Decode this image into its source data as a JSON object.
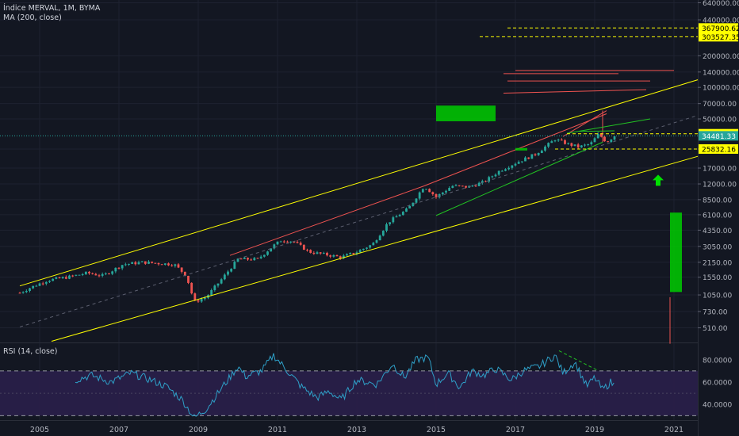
{
  "header": {
    "symbol_line": "Índice MERVAL, 1M, BYMA",
    "ma_line": "MA (200, close)"
  },
  "rsi": {
    "label": "RSI (14, close)",
    "levels": {
      "upper": 70,
      "lower": 30
    },
    "axis_ticks": [
      "80.0000",
      "60.0000",
      "40.0000"
    ]
  },
  "price_axis": {
    "ticks": [
      "640000.00",
      "440000.00",
      "200000.00",
      "140000.00",
      "100000.00",
      "70000.00",
      "50000.00",
      "25832.16",
      "17000.00",
      "12000.00",
      "8500.00",
      "6100.00",
      "4350.00",
      "3050.00",
      "2150.00",
      "1550.00",
      "1050.00",
      "730.00",
      "510.00"
    ],
    "tick_values": [
      640000,
      440000,
      200000,
      140000,
      100000,
      70000,
      50000,
      25832.16,
      17000,
      12000,
      8500,
      6100,
      4350,
      3050,
      2150,
      1550,
      1050,
      730,
      510
    ],
    "labels": [
      {
        "text": "367900.62",
        "value": 367900.62,
        "color": "#ffff00",
        "text_color": "#000000"
      },
      {
        "text": "303527.35",
        "value": 303527.35,
        "color": "#ffff00",
        "text_color": "#000000"
      },
      {
        "text": "36118.27",
        "value": 36118.27,
        "color": "#ffff00",
        "text_color": "#000000"
      },
      {
        "text": "34481.33",
        "value": 34481.33,
        "color": "#26a69a",
        "text_color": "#ffffff"
      },
      {
        "text": "25832.16",
        "value": 25832.16,
        "color": "#ffff00",
        "text_color": "#000000"
      }
    ]
  },
  "time_axis": {
    "ticks": [
      "2005",
      "2007",
      "2009",
      "2011",
      "2013",
      "2015",
      "2017",
      "2019",
      "2021"
    ],
    "tick_years": [
      2005,
      2007,
      2009,
      2011,
      2013,
      2015,
      2017,
      2019,
      2021
    ]
  },
  "colors": {
    "background": "#131722",
    "up": "#26a69a",
    "down": "#ef5350",
    "channel": "#ffff00",
    "green_zone": "#00cc00",
    "rsi_line": "#2ea0c8",
    "rsi_band": "#2a1f4a",
    "last_price_line": "#26a69a"
  },
  "chart_data": {
    "type": "candlestick",
    "scale": "log",
    "x_range": [
      2004.0,
      2021.6
    ],
    "y_range": [
      370,
      680000
    ],
    "price_anchors": [
      [
        2004.5,
        1100
      ],
      [
        2004.8,
        1250
      ],
      [
        2005.2,
        1450
      ],
      [
        2005.7,
        1550
      ],
      [
        2006.2,
        1700
      ],
      [
        2006.6,
        1600
      ],
      [
        2007.1,
        2050
      ],
      [
        2007.6,
        2150
      ],
      [
        2008.0,
        2100
      ],
      [
        2008.4,
        2050
      ],
      [
        2008.7,
        1600
      ],
      [
        2008.9,
        900
      ],
      [
        2009.2,
        1000
      ],
      [
        2009.6,
        1500
      ],
      [
        2010.0,
        2300
      ],
      [
        2010.5,
        2300
      ],
      [
        2010.9,
        3100
      ],
      [
        2011.1,
        3500
      ],
      [
        2011.4,
        3400
      ],
      [
        2011.8,
        2700
      ],
      [
        2012.2,
        2550
      ],
      [
        2012.6,
        2400
      ],
      [
        2013.0,
        2700
      ],
      [
        2013.4,
        3200
      ],
      [
        2013.8,
        5200
      ],
      [
        2014.3,
        7000
      ],
      [
        2014.7,
        11500
      ],
      [
        2015.0,
        9000
      ],
      [
        2015.4,
        11500
      ],
      [
        2015.8,
        11200
      ],
      [
        2016.2,
        12500
      ],
      [
        2016.6,
        16000
      ],
      [
        2017.0,
        19000
      ],
      [
        2017.5,
        23000
      ],
      [
        2018.0,
        32000
      ],
      [
        2018.3,
        29000
      ],
      [
        2018.6,
        27000
      ],
      [
        2018.9,
        29000
      ],
      [
        2019.1,
        36000
      ],
      [
        2019.3,
        30000
      ],
      [
        2019.5,
        34481
      ]
    ],
    "rsi_anchors": [
      [
        2005.9,
        62
      ],
      [
        2006.3,
        66
      ],
      [
        2006.8,
        60
      ],
      [
        2007.3,
        68
      ],
      [
        2007.8,
        62
      ],
      [
        2008.2,
        56
      ],
      [
        2008.6,
        44
      ],
      [
        2008.9,
        28
      ],
      [
        2009.2,
        36
      ],
      [
        2009.6,
        55
      ],
      [
        2010.0,
        74
      ],
      [
        2010.2,
        65
      ],
      [
        2010.6,
        70
      ],
      [
        2010.9,
        84
      ],
      [
        2011.2,
        72
      ],
      [
        2011.6,
        56
      ],
      [
        2012.0,
        46
      ],
      [
        2012.3,
        52
      ],
      [
        2012.6,
        44
      ],
      [
        2013.0,
        62
      ],
      [
        2013.5,
        58
      ],
      [
        2013.9,
        76
      ],
      [
        2014.2,
        64
      ],
      [
        2014.5,
        80
      ],
      [
        2014.8,
        82
      ],
      [
        2015.0,
        58
      ],
      [
        2015.3,
        68
      ],
      [
        2015.6,
        55
      ],
      [
        2015.9,
        70
      ],
      [
        2016.2,
        66
      ],
      [
        2016.5,
        72
      ],
      [
        2016.9,
        62
      ],
      [
        2017.2,
        70
      ],
      [
        2017.6,
        74
      ],
      [
        2018.0,
        84
      ],
      [
        2018.2,
        68
      ],
      [
        2018.5,
        78
      ],
      [
        2018.8,
        56
      ],
      [
        2019.0,
        64
      ],
      [
        2019.2,
        53
      ],
      [
        2019.4,
        60
      ],
      [
        2019.5,
        57
      ]
    ]
  }
}
